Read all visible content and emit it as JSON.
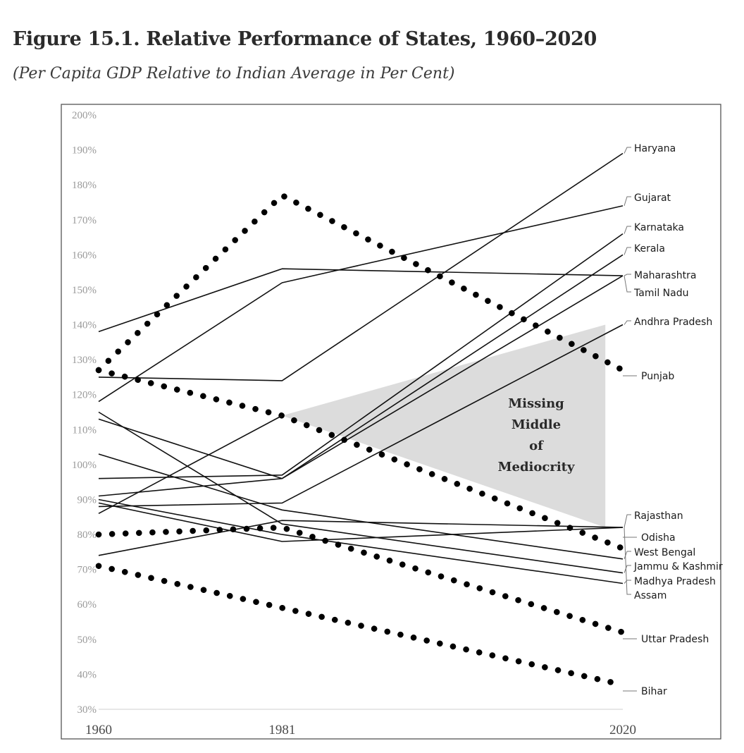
{
  "header": {
    "title": "Figure 15.1. Relative Performance of States, 1960–2020",
    "subtitle": "(Per Capita GDP Relative to Indian Average in Per Cent)"
  },
  "chart_data": {
    "type": "line",
    "title": "Figure 15.1. Relative Performance of States, 1960–2020",
    "subtitle": "(Per Capita GDP Relative to Indian Average in Per Cent)",
    "x": [
      1960,
      1981,
      2020
    ],
    "x_tick_labels": [
      "1960",
      "1981",
      "2020"
    ],
    "ylim": [
      30,
      200
    ],
    "y_ticks": [
      30,
      40,
      50,
      60,
      70,
      80,
      90,
      100,
      110,
      120,
      130,
      140,
      150,
      160,
      170,
      180,
      190,
      200
    ],
    "y_tick_labels": [
      "30%",
      "40%",
      "50%",
      "60%",
      "70%",
      "80%",
      "90%",
      "100%",
      "110%",
      "120%",
      "130%",
      "140%",
      "150%",
      "160%",
      "170%",
      "180%",
      "190%",
      "200%"
    ],
    "grid": false,
    "series": [
      {
        "name": "Haryana",
        "values": [
          125,
          124,
          189
        ],
        "style": "solid"
      },
      {
        "name": "Gujarat",
        "values": [
          118,
          152,
          174
        ],
        "style": "solid"
      },
      {
        "name": "Karnataka",
        "values": [
          96,
          97,
          166
        ],
        "style": "solid"
      },
      {
        "name": "Kerala",
        "values": [
          91,
          96,
          160
        ],
        "style": "solid"
      },
      {
        "name": "Maharashtra",
        "values": [
          138,
          156,
          154
        ],
        "style": "solid"
      },
      {
        "name": "Tamil Nadu",
        "values": [
          113,
          96,
          154
        ],
        "style": "solid"
      },
      {
        "name": "Andhra Pradesh",
        "values": [
          88,
          89,
          140
        ],
        "style": "solid"
      },
      {
        "name": "Punjab",
        "values": [
          127,
          177,
          127
        ],
        "style": "dotted"
      },
      {
        "name": "Rajasthan",
        "values": [
          74,
          84,
          82
        ],
        "style": "solid"
      },
      {
        "name": "Odisha",
        "values": [
          127,
          114,
          76
        ],
        "style": "dotted"
      },
      {
        "name": "West Bengal",
        "values": [
          103,
          87,
          73
        ],
        "style": "solid"
      },
      {
        "name": "Jammu & Kashmir",
        "values": [
          115,
          83,
          69
        ],
        "style": "solid"
      },
      {
        "name": "Madhya Pradesh",
        "values": [
          90,
          80,
          66
        ],
        "style": "solid"
      },
      {
        "name": "Assam",
        "values": [
          89,
          78,
          82
        ],
        "style": "solid"
      },
      {
        "name": "Uttar Pradesh",
        "values": [
          80,
          82,
          52
        ],
        "style": "dotted"
      },
      {
        "name": "Bihar",
        "values": [
          71,
          59,
          37
        ],
        "style": "dotted"
      },
      {
        "name": "",
        "values": [
          86,
          114,
          null
        ],
        "style": "solid"
      }
    ],
    "shaded_region": {
      "label": "Missing Middle of Mediocrity",
      "points": [
        [
          1981,
          114
        ],
        [
          2018,
          140
        ],
        [
          2018,
          82
        ]
      ],
      "color": "#dcdcdc"
    },
    "annotation_lines": [
      "Missing",
      "Middle",
      "of",
      "Mediocrity"
    ]
  }
}
